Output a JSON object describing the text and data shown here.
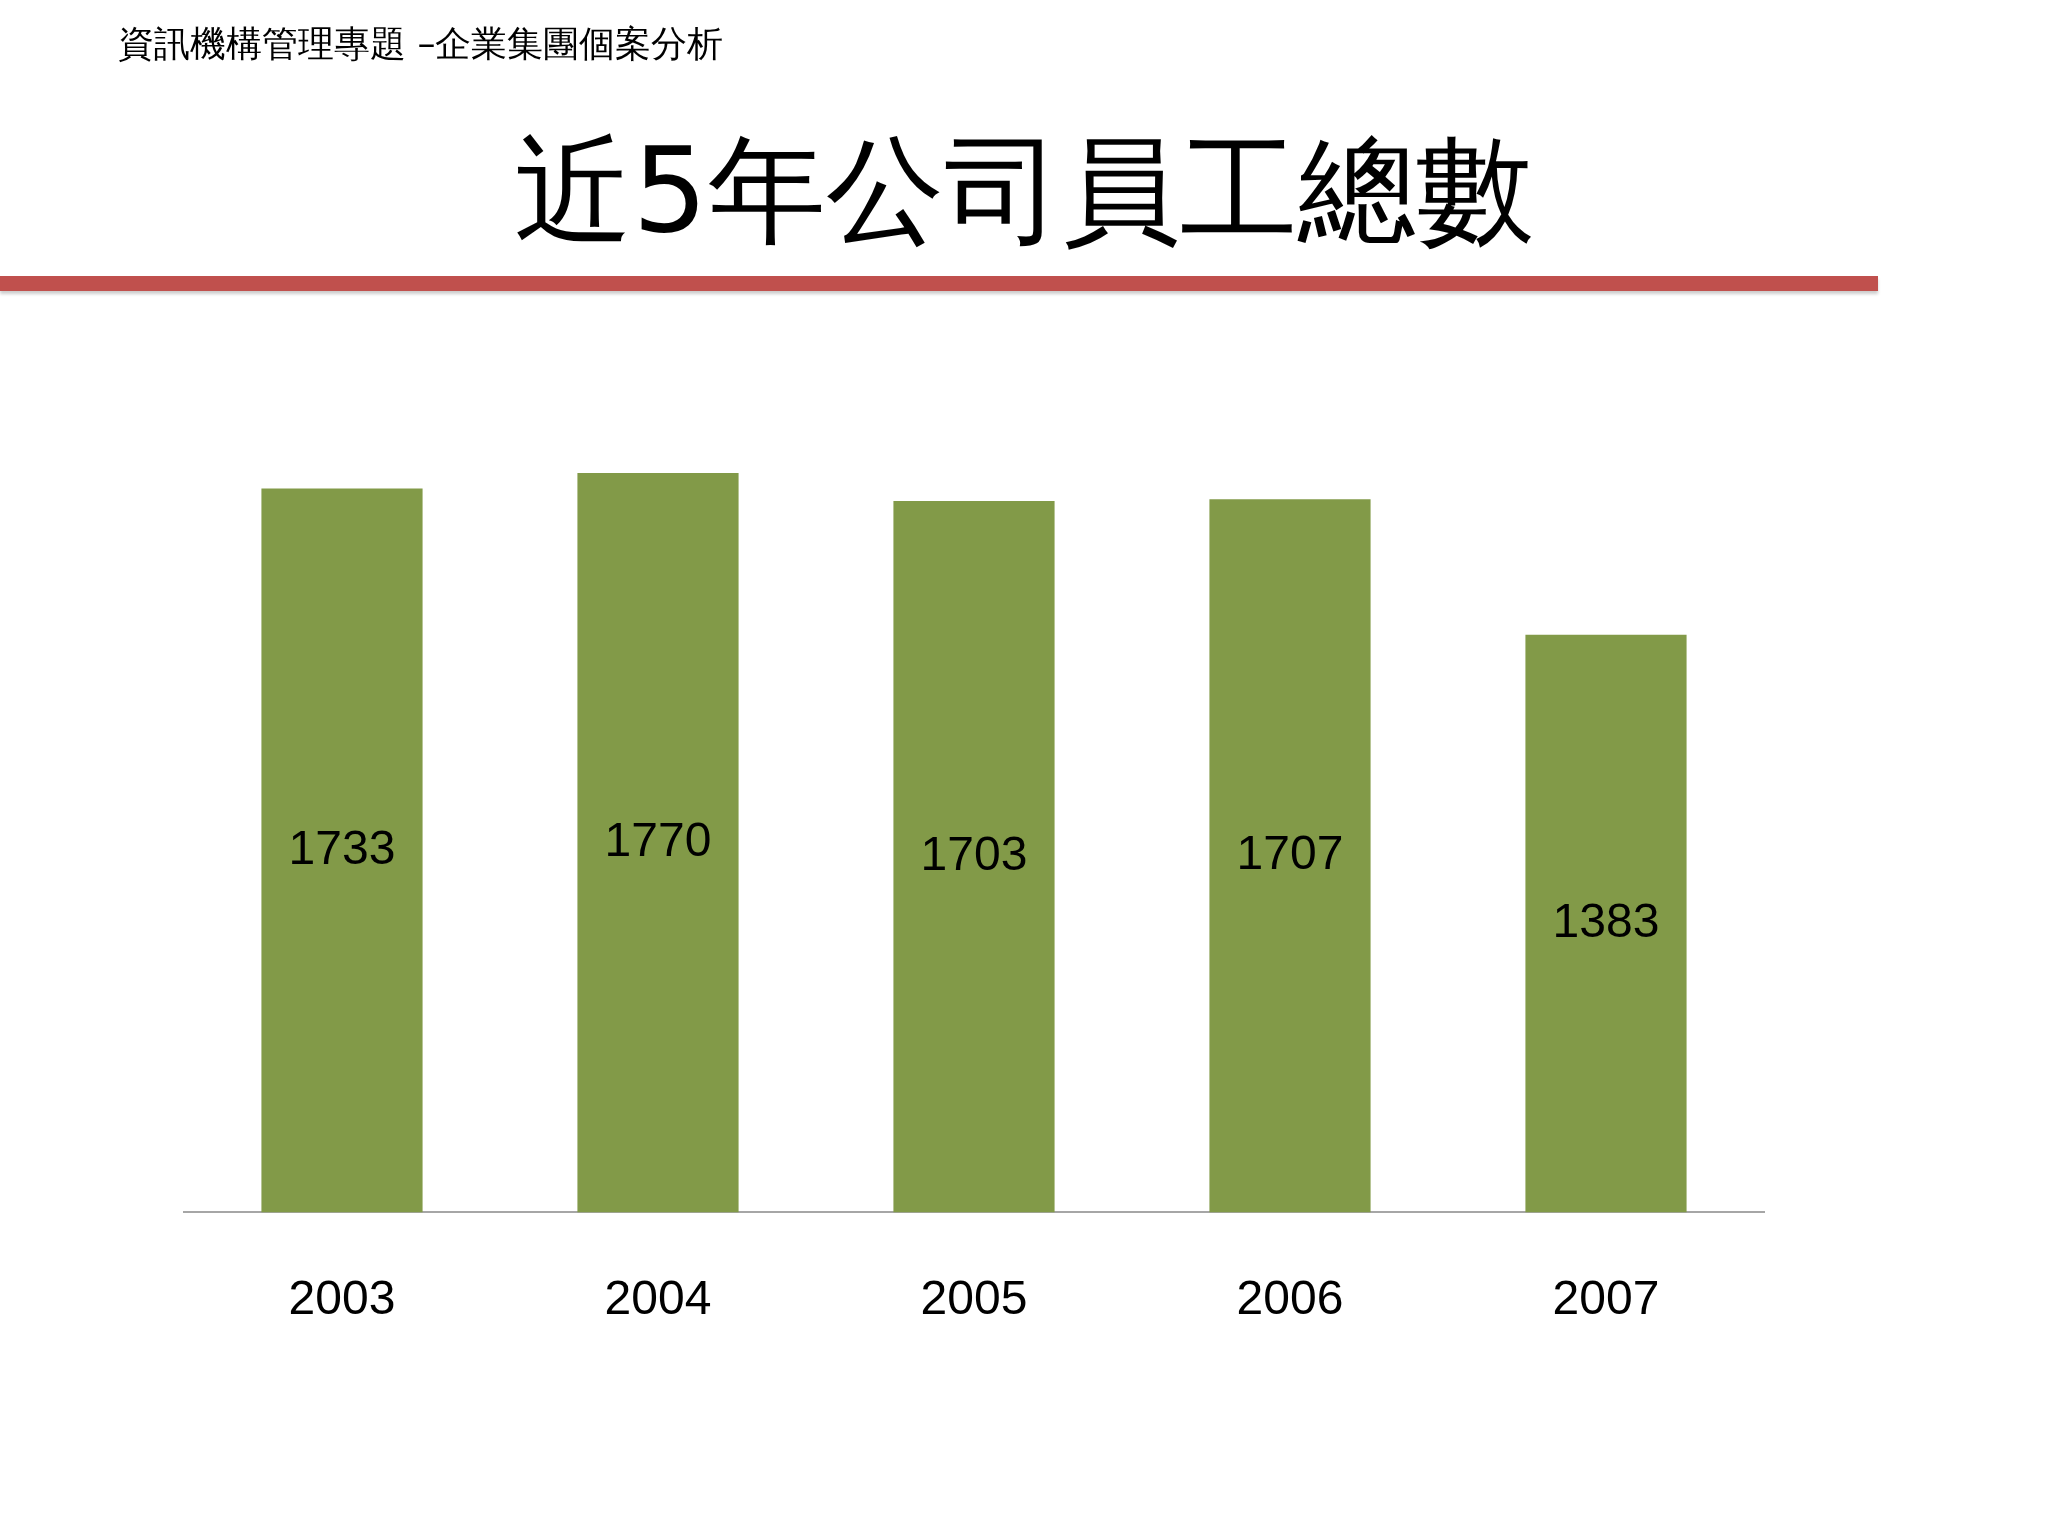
{
  "chart_data": {
    "type": "bar",
    "title": "近5年公司員工總數",
    "subtitle": "資訊機構管理專題 –企業集團個案分析",
    "categories": [
      "2003",
      "2004",
      "2005",
      "2006",
      "2007"
    ],
    "values": [
      1733,
      1770,
      1703,
      1707,
      1383
    ],
    "color": "#829a48",
    "data_labels": true
  }
}
